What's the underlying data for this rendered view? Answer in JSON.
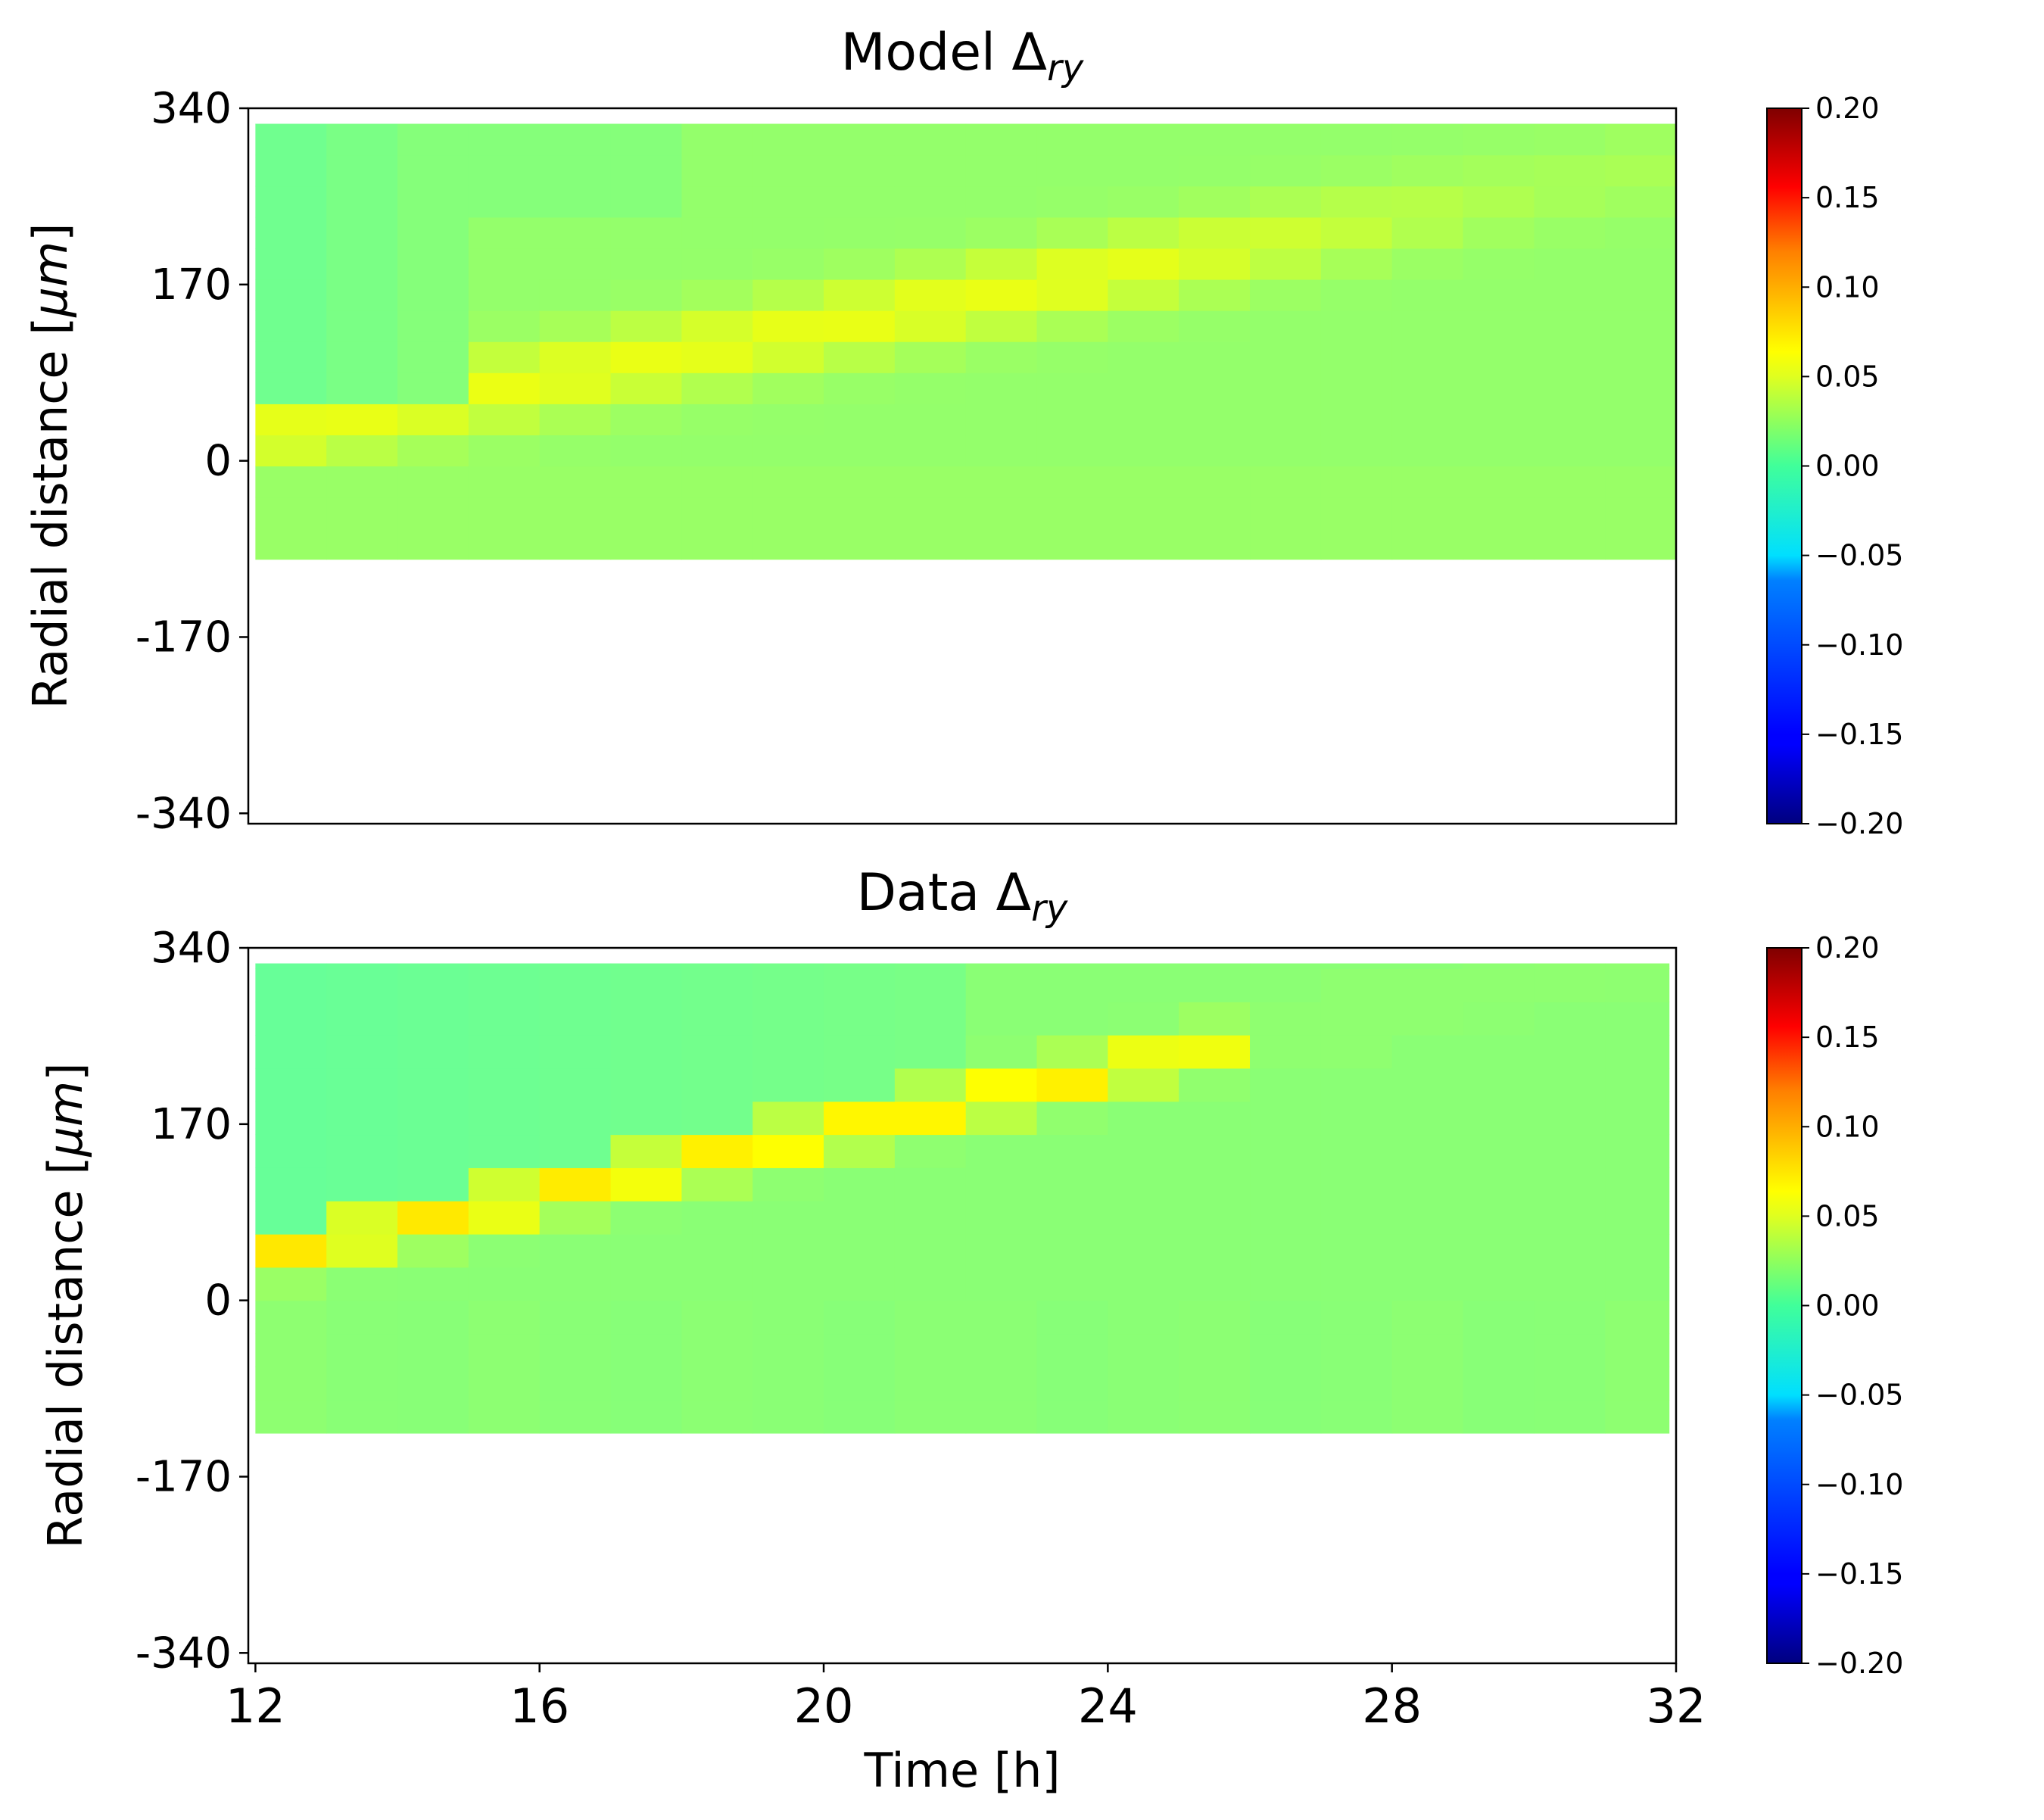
{
  "chart_data": [
    {
      "type": "heatmap",
      "title": "Model Δ",
      "title_subscript": "ry",
      "xlabel": "",
      "ylabel": "Radial distance [",
      "ylabel_unit": "μm",
      "ylabel_close": "]",
      "xlim": [
        11.9,
        32
      ],
      "ylim": [
        -350,
        340
      ],
      "x_ticks": [],
      "y_ticks": [
        340,
        170,
        0,
        -170,
        -340
      ],
      "y_tick_labels": [
        "340",
        "170",
        "0",
        "-170",
        "-340"
      ],
      "grid": false,
      "data_x_range": [
        12,
        32
      ],
      "data_y_range": [
        -95,
        325
      ],
      "colormap": "jet",
      "vmin": -0.2,
      "vmax": 0.2,
      "colorbar_ticks": [
        "0.20",
        "0.15",
        "0.10",
        "0.05",
        "0.00",
        "−0.05",
        "−0.10",
        "−0.15",
        "−0.20"
      ],
      "colorbar_values": [
        0.2,
        0.15,
        0.1,
        0.05,
        0.0,
        -0.05,
        -0.1,
        -0.15,
        -0.2
      ],
      "x": [
        12,
        13,
        14,
        15,
        16,
        17,
        18,
        19,
        20,
        21,
        22,
        23,
        24,
        25,
        26,
        27,
        28,
        29,
        30,
        31,
        32
      ],
      "y": [
        -95,
        -65,
        -35,
        -5,
        25,
        55,
        85,
        115,
        145,
        175,
        205,
        235,
        265,
        295,
        325
      ]
    },
    {
      "type": "heatmap",
      "title": "Data Δ",
      "title_subscript": "ry",
      "xlabel": "Time [h]",
      "ylabel": "Radial distance [",
      "ylabel_unit": "μm",
      "ylabel_close": "]",
      "xlim": [
        11.9,
        32
      ],
      "ylim": [
        -350,
        340
      ],
      "x_ticks": [
        12,
        16,
        20,
        24,
        28,
        32
      ],
      "x_tick_labels": [
        "12",
        "16",
        "20",
        "24",
        "28",
        "32"
      ],
      "y_ticks": [
        340,
        170,
        0,
        -170,
        -340
      ],
      "y_tick_labels": [
        "340",
        "170",
        "0",
        "-170",
        "-340"
      ],
      "grid": false,
      "data_x_range": [
        12,
        31.9
      ],
      "data_y_range": [
        -128,
        325
      ],
      "colormap": "jet",
      "vmin": -0.2,
      "vmax": 0.2,
      "colorbar_ticks": [
        "0.20",
        "0.15",
        "0.10",
        "0.05",
        "0.00",
        "−0.05",
        "−0.10",
        "−0.15",
        "−0.20"
      ],
      "colorbar_values": [
        0.2,
        0.15,
        0.1,
        0.05,
        0.0,
        -0.05,
        -0.1,
        -0.15,
        -0.2
      ],
      "x": [
        12,
        13,
        14,
        15,
        16,
        17,
        18,
        19,
        20,
        21,
        22,
        23,
        24,
        25,
        26,
        27,
        28,
        29,
        30,
        31,
        32
      ],
      "y": [
        -128,
        -96,
        -64,
        -32,
        0,
        32,
        64,
        96,
        128,
        160,
        192,
        224,
        256,
        288,
        320
      ]
    }
  ]
}
